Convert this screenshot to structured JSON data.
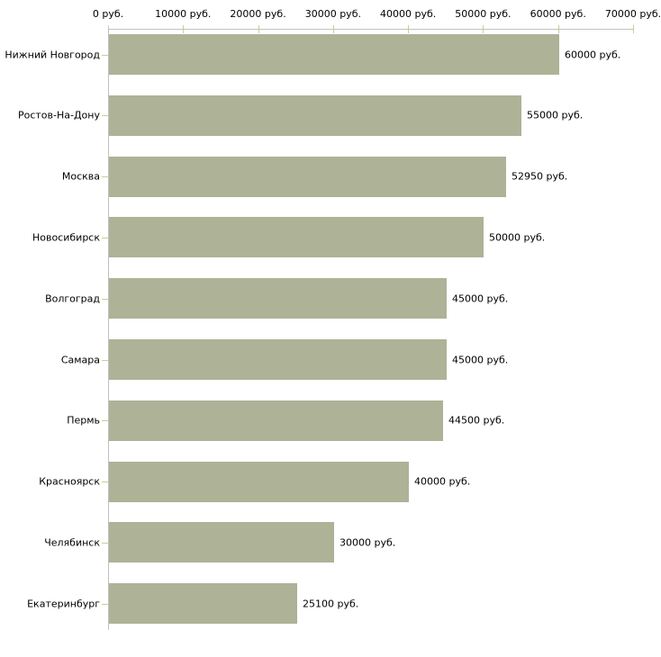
{
  "chart_data": {
    "type": "bar",
    "orientation": "horizontal",
    "categories": [
      "Нижний Новгород",
      "Ростов-На-Дону",
      "Москва",
      "Новосибирск",
      "Волгоград",
      "Самара",
      "Пермь",
      "Красноярск",
      "Челябинск",
      "Екатеринбург"
    ],
    "values": [
      60000,
      55000,
      52950,
      50000,
      45000,
      45000,
      44500,
      40000,
      30000,
      25100
    ],
    "value_labels": [
      "60000 руб.",
      "55000 руб.",
      "52950 руб.",
      "50000 руб.",
      "45000 руб.",
      "45000 руб.",
      "44500 руб.",
      "40000 руб.",
      "30000 руб.",
      "25100 руб."
    ],
    "x_axis": {
      "position": "top",
      "min": 0,
      "max": 70000,
      "ticks": [
        0,
        10000,
        20000,
        30000,
        40000,
        50000,
        60000,
        70000
      ],
      "tick_labels": [
        "0 руб.",
        "10000 руб.",
        "20000 руб.",
        "30000 руб.",
        "40000 руб.",
        "50000 руб.",
        "60000 руб.",
        "70000 руб."
      ],
      "unit": "руб."
    },
    "ylabel": "",
    "xlabel": "",
    "title": "",
    "grid": false,
    "legend": false,
    "colors": {
      "bar": "#AEB297",
      "axis_line": "#C0C0C0",
      "tick": "#CCCC99",
      "text": "#000000",
      "background": "#FFFFFF"
    }
  }
}
